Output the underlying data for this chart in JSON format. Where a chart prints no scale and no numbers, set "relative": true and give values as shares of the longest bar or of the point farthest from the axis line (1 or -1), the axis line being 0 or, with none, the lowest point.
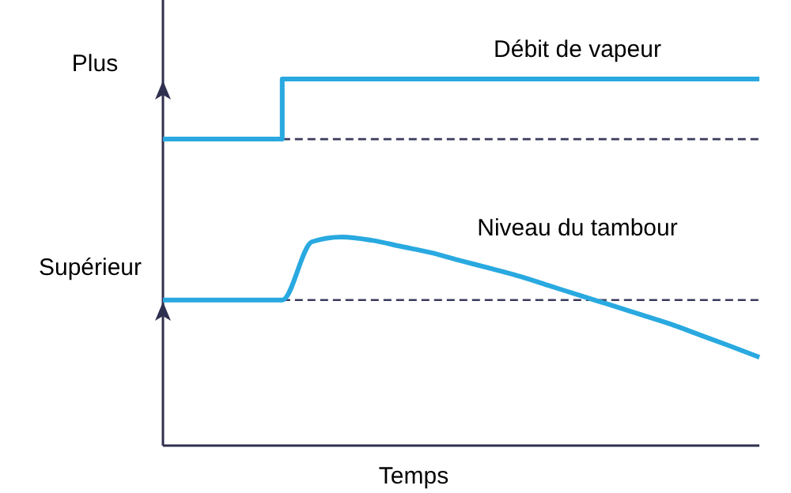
{
  "chart_data": {
    "type": "line",
    "relative": true,
    "xlabel": "Temps",
    "marker": "none",
    "categories": [
      null,
      null,
      null,
      null,
      null,
      null,
      null,
      null,
      null,
      null,
      null,
      null,
      null,
      null,
      null,
      null,
      null,
      null,
      null,
      null,
      null
    ],
    "series": [
      {
        "name": "Débit de vapeur",
        "type": "step",
        "color": "#29a9e0",
        "values": [
          0.836,
          0.836,
          0.836,
          0.836,
          1,
          1,
          1,
          1,
          1,
          1,
          1,
          1,
          1,
          1,
          1,
          1,
          1,
          1,
          1,
          1,
          1
        ]
      },
      {
        "name": "Niveau du tambour",
        "type": "line",
        "color": "#29a9e0",
        "values": [
          0.397,
          0.397,
          0.397,
          0.397,
          0.397,
          0.556,
          0.569,
          0.56,
          0.543,
          0.526,
          0.504,
          0.483,
          0.461,
          0.435,
          0.409,
          0.384,
          0.358,
          0.332,
          0.302,
          0.272,
          0.241
        ]
      }
    ],
    "ref_lines": [
      {
        "axis": "y",
        "value": 0.836,
        "color": "#3a3a5c",
        "line_style": "dashed"
      },
      {
        "axis": "y",
        "value": 0.397,
        "color": "#3a3a5c",
        "line_style": "dashed"
      }
    ],
    "annotations": [
      "Plus",
      "Supérieur"
    ]
  }
}
